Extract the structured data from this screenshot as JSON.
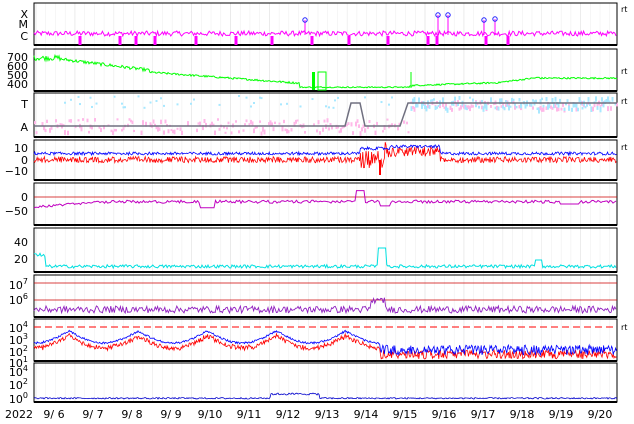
{
  "page": {
    "year_label": "2022",
    "date_labels": [
      "9/ 6",
      "9/ 7",
      "9/ 8",
      "9/ 9",
      "9/10",
      "9/11",
      "9/12",
      "9/13",
      "9/14",
      "9/15",
      "9/16",
      "9/17",
      "9/18",
      "9/19",
      "9/20"
    ],
    "right_markers": [
      "rt",
      "rt",
      "rt",
      "rt",
      "rt"
    ]
  },
  "chart_data": [
    {
      "type": "line",
      "panel": "flare class",
      "tick_labels": [
        "X",
        "M",
        "C"
      ],
      "series": [
        {
          "color": "#ff00ff"
        }
      ]
    },
    {
      "type": "line",
      "panel": "solar wind speed",
      "tick_labels": [
        "700",
        "600",
        "500",
        "400"
      ],
      "ylim": [
        350,
        750
      ],
      "series": [
        {
          "color": "#00ff00"
        }
      ]
    },
    {
      "type": "scatter",
      "panel": "sector polarity",
      "tick_labels": [
        "T",
        "A"
      ],
      "series": [
        {
          "color": "#a8e8ff"
        },
        {
          "color": "#ffb8e8"
        },
        {
          "color": "#707080"
        }
      ]
    },
    {
      "type": "line",
      "panel": "IMF",
      "tick_labels": [
        "10",
        "0",
        "−10"
      ],
      "ylim": [
        -17,
        17
      ],
      "series": [
        {
          "color": "#0000ff"
        },
        {
          "color": "#ff0000"
        }
      ]
    },
    {
      "type": "line",
      "panel": "Dst",
      "tick_labels": [
        "0",
        "−50"
      ],
      "ylim": [
        -80,
        30
      ],
      "series": [
        {
          "color": "#c000c0"
        }
      ]
    },
    {
      "type": "line",
      "panel": "Kp-like index",
      "tick_labels": [
        "40",
        "20"
      ],
      "ylim": [
        0,
        55
      ],
      "series": [
        {
          "color": "#00e0e0"
        }
      ]
    },
    {
      "type": "line",
      "panel": "electron flux",
      "tick_labels": [
        "10^7",
        "10^6"
      ],
      "series": [
        {
          "color": "#cc0000"
        },
        {
          "color": "#9020c0"
        }
      ]
    },
    {
      "type": "line",
      "panel": "proton flux",
      "tick_labels": [
        "10^4",
        "10^3",
        "10^2",
        "10^1"
      ],
      "series": [
        {
          "color": "#0000ff"
        },
        {
          "color": "#ff0000"
        }
      ]
    },
    {
      "type": "line",
      "panel": "neutron",
      "tick_labels": [
        "10^4",
        "10^2",
        "10^0"
      ],
      "series": [
        {
          "color": "#0000cc"
        }
      ]
    }
  ]
}
